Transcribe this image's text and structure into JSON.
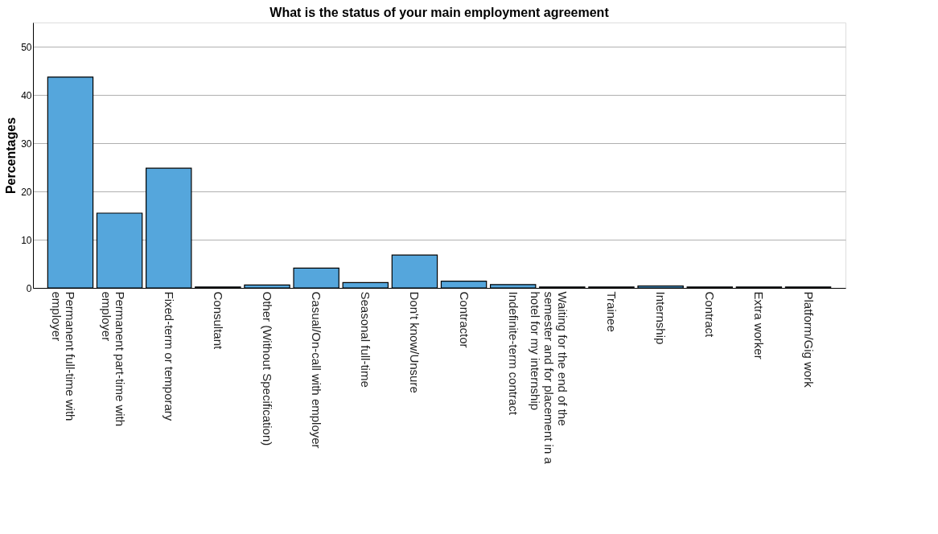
{
  "chart_data": {
    "type": "bar",
    "title": "What is the status of your main employment agreement",
    "ylabel": "Percentages",
    "categories": [
      "Permanent full-time with employer",
      "Permanent part-time with employer",
      "Fixed-term or temporary",
      "Consultant",
      "Other (Without Specification)",
      "Casual/On-call with employer",
      "Seasonal full-time",
      "Don't know/Unsure",
      "Contractor",
      "Indefinite-term contract",
      "Waiting for the end of the semester and for placement in a hotel for my internship",
      "Trainee",
      "Internship",
      "Contract",
      "Extra worker",
      "Platform/Gig work"
    ],
    "values": [
      43.7,
      15.5,
      24.8,
      0.2,
      0.6,
      4.1,
      1.1,
      6.8,
      1.4,
      0.7,
      0.2,
      0.2,
      0.4,
      0.2,
      0.2,
      0.2
    ],
    "color": "#55a6dc",
    "ylim": [
      0,
      55
    ],
    "yticks": [
      0,
      10,
      20,
      30,
      40,
      50
    ],
    "grid": "y"
  }
}
